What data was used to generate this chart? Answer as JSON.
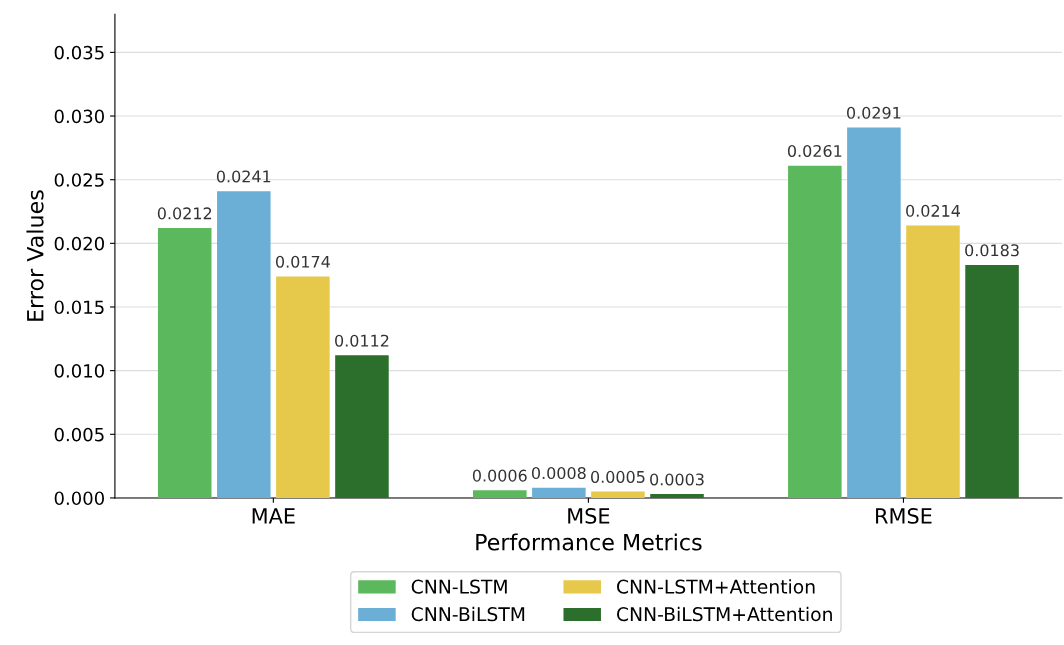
{
  "chart_data": {
    "type": "bar",
    "xlabel": "Performance Metrics",
    "ylabel": "Error Values",
    "categories": [
      "MAE",
      "MSE",
      "RMSE"
    ],
    "series": [
      {
        "name": "CNN-LSTM",
        "color": "#5cb85c",
        "values": [
          0.0212,
          0.0006,
          0.0261
        ]
      },
      {
        "name": "CNN-BiLSTM",
        "color": "#6baed6",
        "values": [
          0.0241,
          0.0008,
          0.0291
        ]
      },
      {
        "name": "CNN-LSTM+Attention",
        "color": "#e6c84a",
        "values": [
          0.0174,
          0.0005,
          0.0214
        ]
      },
      {
        "name": "CNN-BiLSTM+Attention",
        "color": "#2c6e2c",
        "values": [
          0.0112,
          0.0003,
          0.0183
        ]
      }
    ],
    "ylim": [
      0,
      0.038
    ],
    "yticks": [
      {
        "value": 0,
        "label": "0.000"
      },
      {
        "value": 0.005,
        "label": "0.005"
      },
      {
        "value": 0.01,
        "label": "0.010"
      },
      {
        "value": 0.015,
        "label": "0.015"
      },
      {
        "value": 0.02,
        "label": "0.020"
      },
      {
        "value": 0.025,
        "label": "0.025"
      },
      {
        "value": 0.03,
        "label": "0.030"
      },
      {
        "value": 0.035,
        "label": "0.035"
      }
    ],
    "grid": "y",
    "legend": "bottom",
    "data_labels": true
  }
}
